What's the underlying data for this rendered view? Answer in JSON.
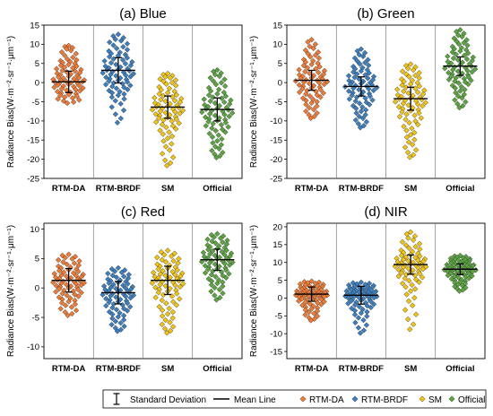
{
  "chart_data": [
    {
      "type": "scatter",
      "title": "(a) Blue",
      "ylabel": "Radiance Bias(W·m⁻²·sr⁻¹·μm⁻¹)",
      "ylim": [
        -25,
        15
      ],
      "yticks": [
        15,
        10,
        5,
        0,
        -5,
        -10,
        -15,
        -20,
        -25
      ],
      "categories": [
        "RTM-DA",
        "RTM-BRDF",
        "SM",
        "Official"
      ],
      "series": [
        {
          "name": "RTM-DA",
          "color": "#f07a33",
          "mean": 0.2,
          "std": 2.8,
          "min": -5.5,
          "max": 9.8,
          "values": [
            9.8,
            8.9,
            7.6,
            6.1,
            5.4,
            4.6,
            3.9,
            3.2,
            2.6,
            2.0,
            1.4,
            0.9,
            0.4,
            0.1,
            -0.3,
            -0.8,
            -1.3,
            -1.9,
            -2.5,
            -3.1,
            -3.8,
            -4.6,
            -5.5
          ]
        },
        {
          "name": "RTM-BRDF",
          "color": "#3b7fc0",
          "mean": 3.2,
          "std": 3.3,
          "min": -11.0,
          "max": 12.8,
          "values": [
            12.8,
            11.4,
            10.2,
            8.9,
            7.8,
            6.9,
            6.0,
            5.2,
            4.5,
            3.8,
            3.2,
            2.6,
            2.0,
            1.4,
            0.8,
            0.1,
            -0.6,
            -1.4,
            -2.3,
            -3.3,
            -4.8,
            -7.5,
            -11.0
          ]
        },
        {
          "name": "SM",
          "color": "#f2c40f",
          "mean": -6.4,
          "std": 2.9,
          "min": -22.0,
          "max": 2.5,
          "values": [
            2.5,
            1.6,
            0.7,
            -0.4,
            -1.6,
            -2.8,
            -3.6,
            -4.4,
            -5.1,
            -5.8,
            -6.4,
            -7.0,
            -7.6,
            -8.2,
            -8.9,
            -9.6,
            -10.4,
            -11.5,
            -12.8,
            -14.5,
            -16.8,
            -19.8,
            -22.0
          ]
        },
        {
          "name": "Official",
          "color": "#5aa540",
          "mean": -7.0,
          "std": 3.0,
          "min": -19.8,
          "max": 3.5,
          "values": [
            3.5,
            2.2,
            0.9,
            -0.5,
            -1.9,
            -3.1,
            -4.0,
            -4.8,
            -5.6,
            -6.3,
            -7.0,
            -7.6,
            -8.3,
            -9.0,
            -9.7,
            -10.5,
            -11.4,
            -12.4,
            -13.6,
            -15.2,
            -16.8,
            -18.4,
            -19.8
          ]
        }
      ]
    },
    {
      "type": "scatter",
      "title": "(b) Green",
      "ylabel": "Radiance Bias(W·m⁻²·sr⁻¹·μm⁻¹)",
      "ylim": [
        -25,
        15
      ],
      "yticks": [
        15,
        10,
        5,
        0,
        -5,
        -10,
        -15,
        -20,
        -25
      ],
      "categories": [
        "RTM-DA",
        "RTM-BRDF",
        "SM",
        "Official"
      ],
      "series": [
        {
          "name": "RTM-DA",
          "color": "#f07a33",
          "mean": 0.6,
          "std": 2.6,
          "min": -9.5,
          "max": 11.5,
          "values": [
            11.5,
            9.6,
            8.0,
            6.7,
            5.6,
            4.6,
            3.7,
            2.9,
            2.2,
            1.6,
            1.0,
            0.5,
            0.0,
            -0.6,
            -1.2,
            -1.9,
            -2.6,
            -3.4,
            -4.3,
            -5.3,
            -6.6,
            -8.1,
            -9.5
          ]
        },
        {
          "name": "RTM-BRDF",
          "color": "#3b7fc0",
          "mean": -1.0,
          "std": 2.5,
          "min": -12.0,
          "max": 9.0,
          "values": [
            9.0,
            7.4,
            6.0,
            4.8,
            3.8,
            2.9,
            2.1,
            1.4,
            0.7,
            0.1,
            -0.5,
            -1.0,
            -1.6,
            -2.2,
            -2.9,
            -3.6,
            -4.4,
            -5.3,
            -6.3,
            -7.5,
            -8.9,
            -10.4,
            -12.0
          ]
        },
        {
          "name": "SM",
          "color": "#f2c40f",
          "mean": -4.2,
          "std": 3.0,
          "min": -19.8,
          "max": 5.0,
          "values": [
            5.0,
            3.8,
            2.6,
            1.5,
            0.5,
            -0.5,
            -1.4,
            -2.2,
            -3.0,
            -3.7,
            -4.3,
            -4.9,
            -5.6,
            -6.3,
            -7.1,
            -8.0,
            -9.0,
            -10.3,
            -11.8,
            -13.6,
            -15.6,
            -17.8,
            -19.8
          ]
        },
        {
          "name": "Official",
          "color": "#5aa540",
          "mean": 4.3,
          "std": 2.4,
          "min": -6.8,
          "max": 14.0,
          "values": [
            14.0,
            12.5,
            11.2,
            10.0,
            9.0,
            8.1,
            7.2,
            6.4,
            5.7,
            5.0,
            4.4,
            3.8,
            3.2,
            2.6,
            2.0,
            1.4,
            0.7,
            0.0,
            -1.0,
            -2.2,
            -3.6,
            -5.2,
            -6.8
          ]
        }
      ]
    },
    {
      "type": "scatter",
      "title": "(c) Red",
      "ylabel": "Radiance Bias(W·m⁻²·sr⁻¹·μm⁻¹)",
      "ylim": [
        -12,
        11
      ],
      "yticks": [
        10,
        5,
        0,
        -5,
        -10
      ],
      "categories": [
        "RTM-DA",
        "RTM-BRDF",
        "SM",
        "Official"
      ],
      "series": [
        {
          "name": "RTM-DA",
          "color": "#f07a33",
          "mean": 1.3,
          "std": 2.0,
          "min": -4.8,
          "max": 5.8,
          "values": [
            5.8,
            5.2,
            4.6,
            4.0,
            3.5,
            3.0,
            2.6,
            2.2,
            1.9,
            1.6,
            1.3,
            1.0,
            0.7,
            0.4,
            0.1,
            -0.3,
            -0.7,
            -1.2,
            -1.7,
            -2.3,
            -3.0,
            -3.9,
            -4.8
          ]
        },
        {
          "name": "RTM-BRDF",
          "color": "#3b7fc0",
          "mean": -0.8,
          "std": 1.9,
          "min": -7.5,
          "max": 3.5,
          "values": [
            3.5,
            2.9,
            2.3,
            1.8,
            1.3,
            0.9,
            0.5,
            0.1,
            -0.2,
            -0.5,
            -0.8,
            -1.1,
            -1.4,
            -1.8,
            -2.2,
            -2.6,
            -3.1,
            -3.6,
            -4.2,
            -4.9,
            -5.7,
            -6.6,
            -7.5
          ]
        },
        {
          "name": "SM",
          "color": "#f2c40f",
          "mean": 1.3,
          "std": 2.4,
          "min": -7.8,
          "max": 6.5,
          "values": [
            6.5,
            5.7,
            5.0,
            4.4,
            3.8,
            3.3,
            2.8,
            2.4,
            2.0,
            1.7,
            1.3,
            0.9,
            0.5,
            0.1,
            -0.4,
            -1.0,
            -1.7,
            -2.5,
            -3.4,
            -4.4,
            -5.5,
            -6.7,
            -7.8
          ]
        },
        {
          "name": "Official",
          "color": "#5aa540",
          "mean": 4.8,
          "std": 1.8,
          "min": -2.2,
          "max": 9.3,
          "values": [
            9.3,
            8.7,
            8.1,
            7.6,
            7.1,
            6.6,
            6.2,
            5.8,
            5.4,
            5.1,
            4.8,
            4.5,
            4.2,
            3.8,
            3.4,
            3.0,
            2.5,
            2.0,
            1.4,
            0.8,
            0.0,
            -1.0,
            -2.2
          ]
        }
      ]
    },
    {
      "type": "scatter",
      "title": "(d) NIR",
      "ylabel": "Radiance Bias(W·m⁻²·sr⁻¹·μm⁻¹)",
      "ylim": [
        -17,
        21
      ],
      "yticks": [
        20,
        15,
        10,
        5,
        0,
        -5,
        -10,
        -15
      ],
      "categories": [
        "RTM-DA",
        "RTM-BRDF",
        "SM",
        "Official"
      ],
      "series": [
        {
          "name": "RTM-DA",
          "color": "#f07a33",
          "mean": 1.1,
          "std": 2.0,
          "min": -6.5,
          "max": 4.8,
          "values": [
            4.8,
            4.3,
            3.8,
            3.3,
            2.9,
            2.5,
            2.1,
            1.8,
            1.5,
            1.3,
            1.1,
            0.9,
            0.6,
            0.3,
            0.0,
            -0.4,
            -0.9,
            -1.5,
            -2.2,
            -3.0,
            -4.0,
            -5.2,
            -6.5
          ]
        },
        {
          "name": "RTM-BRDF",
          "color": "#3b7fc0",
          "mean": 0.8,
          "std": 2.5,
          "min": -10.2,
          "max": 4.5,
          "values": [
            4.5,
            4.0,
            3.5,
            3.1,
            2.7,
            2.4,
            2.1,
            1.8,
            1.5,
            1.2,
            0.9,
            0.6,
            0.3,
            0.0,
            -0.5,
            -1.0,
            -1.6,
            -2.3,
            -3.1,
            -4.2,
            -5.6,
            -7.8,
            -10.2
          ]
        },
        {
          "name": "SM",
          "color": "#f2c40f",
          "mean": 9.4,
          "std": 2.7,
          "min": -9.5,
          "max": 18.8,
          "values": [
            18.8,
            17.0,
            15.3,
            14.0,
            13.0,
            12.1,
            11.4,
            10.8,
            10.3,
            9.8,
            9.4,
            9.0,
            8.5,
            8.0,
            7.4,
            6.8,
            6.0,
            5.0,
            3.8,
            2.0,
            -1.0,
            -5.0,
            -9.5
          ]
        },
        {
          "name": "Official",
          "color": "#5aa540",
          "mean": 8.1,
          "std": 1.5,
          "min": 1.8,
          "max": 12.0,
          "values": [
            12.0,
            11.5,
            11.0,
            10.6,
            10.2,
            9.8,
            9.5,
            9.2,
            8.9,
            8.6,
            8.3,
            8.0,
            7.7,
            7.4,
            7.1,
            6.7,
            6.3,
            5.8,
            5.2,
            4.5,
            3.8,
            2.8,
            1.8
          ]
        }
      ]
    }
  ],
  "legend": {
    "std_label": "Standard Deviation",
    "mean_label": "Mean Line",
    "items": [
      {
        "label": "RTM-DA",
        "color": "#f07a33"
      },
      {
        "label": "RTM-BRDF",
        "color": "#3b7fc0"
      },
      {
        "label": "SM",
        "color": "#f2c40f"
      },
      {
        "label": "Official",
        "color": "#5aa540"
      }
    ]
  }
}
